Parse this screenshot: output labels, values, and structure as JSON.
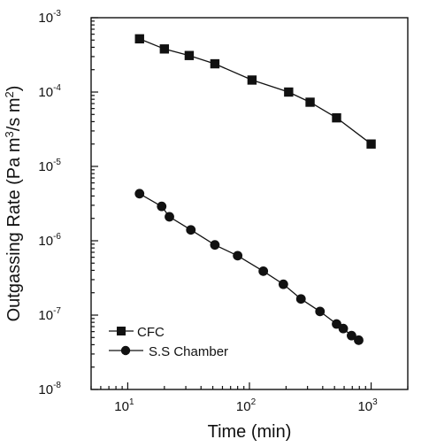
{
  "chart_data": {
    "type": "line",
    "xscale": "log",
    "yscale": "log",
    "xlim": [
      5,
      2000
    ],
    "ylim": [
      1e-08,
      0.001
    ],
    "xlabel": "Time (min)",
    "ylabel": "Outgassing Rate (Pa m³/s m²)",
    "ylabel_parts": {
      "pre": "Outgassing Rate (Pa m",
      "sup1": "3",
      "mid": "/s m",
      "sup2": "2",
      "post": ")"
    },
    "x_ticks": [
      {
        "value": 10,
        "base": "10",
        "exp": "1"
      },
      {
        "value": 100,
        "base": "10",
        "exp": "2"
      },
      {
        "value": 1000,
        "base": "10",
        "exp": "3"
      }
    ],
    "y_ticks": [
      {
        "value": 1e-08,
        "base": "10",
        "exp": "-8"
      },
      {
        "value": 1e-07,
        "base": "10",
        "exp": "-7"
      },
      {
        "value": 1e-06,
        "base": "10",
        "exp": "-6"
      },
      {
        "value": 1e-05,
        "base": "10",
        "exp": "-5"
      },
      {
        "value": 0.0001,
        "base": "10",
        "exp": "-4"
      },
      {
        "value": 0.001,
        "base": "10",
        "exp": "-3"
      }
    ],
    "grid": false,
    "legend_position": "bottom-left",
    "series": [
      {
        "name": "CFC",
        "marker": "square",
        "x": [
          12.5,
          20,
          32,
          52,
          105,
          210,
          315,
          520,
          1000
        ],
        "y": [
          0.00052,
          0.00038,
          0.00031,
          0.00024,
          0.000145,
          0.0001,
          7.3e-05,
          4.5e-05,
          2e-05
        ]
      },
      {
        "name": "S.S Chamber",
        "marker": "circle",
        "x": [
          12.5,
          19,
          22,
          33,
          52,
          80,
          130,
          190,
          265,
          380,
          520,
          590,
          690,
          790
        ],
        "y": [
          4.3e-06,
          2.9e-06,
          2.1e-06,
          1.4e-06,
          8.8e-07,
          6.3e-07,
          3.9e-07,
          2.6e-07,
          1.65e-07,
          1.12e-07,
          7.6e-08,
          6.6e-08,
          5.3e-08,
          4.6e-08
        ]
      }
    ]
  }
}
